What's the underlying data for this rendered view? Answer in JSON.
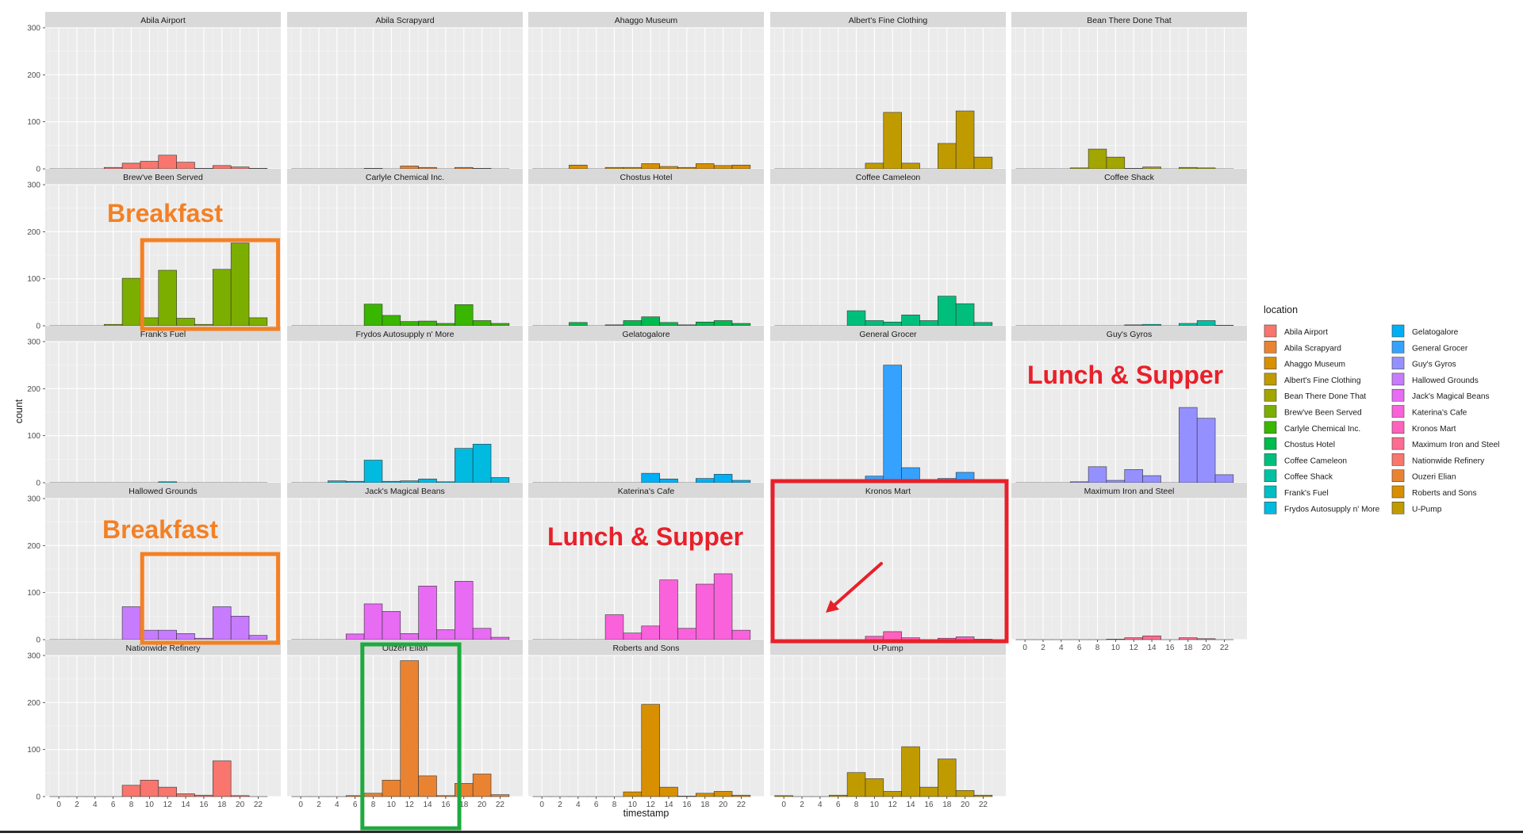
{
  "chart_data": {
    "type": "bar",
    "subtype": "faceted-histogram",
    "xlabel": "timestamp",
    "ylabel": "count",
    "ylim": [
      0,
      300
    ],
    "yticks": [
      0,
      100,
      200,
      300
    ],
    "xlim": [
      -1.5,
      24.5
    ],
    "xticks": [
      0,
      2,
      4,
      6,
      8,
      10,
      12,
      14,
      16,
      18,
      20,
      22
    ],
    "bin_width": 2,
    "bin_centers": [
      0,
      2,
      4,
      6,
      8,
      10,
      12,
      14,
      16,
      18,
      20,
      22
    ],
    "grid": true,
    "legend": {
      "title": "location",
      "placement": "right",
      "columns": 2
    },
    "facets": [
      {
        "name": "Abila Airport",
        "color": "#F8766D",
        "values": [
          0,
          0,
          0,
          3,
          12,
          16,
          29,
          14,
          1,
          7,
          4,
          1
        ]
      },
      {
        "name": "Abila Scrapyard",
        "color": "#EA8331",
        "values": [
          0,
          0,
          0,
          0,
          1,
          0,
          6,
          3,
          0,
          3,
          1,
          0
        ]
      },
      {
        "name": "Ahaggo Museum",
        "color": "#D89000",
        "values": [
          0,
          0,
          8,
          0,
          3,
          3,
          11,
          5,
          3,
          11,
          7,
          8
        ]
      },
      {
        "name": "Albert's Fine Clothing",
        "color": "#C09B00",
        "values": [
          0,
          0,
          0,
          0,
          0,
          12,
          120,
          12,
          0,
          54,
          123,
          25
        ]
      },
      {
        "name": "Bean There Done That",
        "color": "#A3A500",
        "values": [
          0,
          0,
          0,
          2,
          42,
          25,
          1,
          4,
          0,
          3,
          2,
          0
        ]
      },
      {
        "name": "Brew've Been Served",
        "color": "#7CAE00",
        "values": [
          0,
          0,
          0,
          3,
          101,
          17,
          118,
          16,
          3,
          120,
          176,
          17
        ]
      },
      {
        "name": "Carlyle Chemical Inc.",
        "color": "#39B600",
        "values": [
          0,
          0,
          0,
          0,
          46,
          22,
          9,
          10,
          5,
          45,
          11,
          5
        ]
      },
      {
        "name": "Chostus Hotel",
        "color": "#00BB4E",
        "values": [
          0,
          0,
          7,
          0,
          2,
          11,
          19,
          7,
          2,
          8,
          11,
          5
        ]
      },
      {
        "name": "Coffee Cameleon",
        "color": "#00BF7D",
        "values": [
          0,
          0,
          0,
          0,
          32,
          11,
          8,
          23,
          11,
          63,
          47,
          7
        ]
      },
      {
        "name": "Coffee Shack",
        "color": "#00C1A3",
        "values": [
          0,
          0,
          0,
          0,
          0,
          0,
          2,
          3,
          0,
          5,
          11,
          1
        ]
      },
      {
        "name": "Frank's Fuel",
        "color": "#00BFC4",
        "values": [
          0,
          0,
          0,
          0,
          0,
          0,
          2,
          0,
          0,
          0,
          0,
          0
        ]
      },
      {
        "name": "Frydos Autosupply n' More",
        "color": "#00BAE0",
        "values": [
          0,
          0,
          4,
          3,
          48,
          3,
          4,
          8,
          2,
          73,
          82,
          11
        ]
      },
      {
        "name": "Gelatogalore",
        "color": "#00B0F6",
        "values": [
          0,
          0,
          0,
          0,
          0,
          0,
          20,
          8,
          0,
          9,
          18,
          5
        ]
      },
      {
        "name": "General Grocer",
        "color": "#35A2FF",
        "values": [
          0,
          0,
          0,
          0,
          0,
          14,
          250,
          32,
          0,
          9,
          22,
          7
        ]
      },
      {
        "name": "Guy's Gyros",
        "color": "#9590FF",
        "values": [
          0,
          0,
          0,
          2,
          34,
          5,
          28,
          15,
          0,
          160,
          137,
          17
        ]
      },
      {
        "name": "Hallowed Grounds",
        "color": "#C77CFF",
        "values": [
          0,
          0,
          0,
          0,
          70,
          20,
          20,
          13,
          3,
          70,
          50,
          9
        ]
      },
      {
        "name": "Jack's Magical Beans",
        "color": "#E76BF3",
        "values": [
          0,
          0,
          0,
          12,
          76,
          60,
          13,
          114,
          21,
          124,
          24,
          5
        ]
      },
      {
        "name": "Katerina's Cafe",
        "color": "#FA62DB",
        "values": [
          0,
          0,
          0,
          0,
          53,
          14,
          29,
          127,
          24,
          118,
          140,
          20
        ]
      },
      {
        "name": "Kronos Mart",
        "color": "#FF62BC",
        "values": [
          0,
          0,
          0,
          0,
          0,
          7,
          17,
          4,
          0,
          3,
          6,
          1
        ]
      },
      {
        "name": "Maximum Iron and Steel",
        "color": "#FF6C91",
        "values": [
          0,
          0,
          0,
          0,
          0,
          1,
          4,
          8,
          0,
          4,
          2,
          0
        ]
      },
      {
        "name": "Nationwide Refinery",
        "color": "#F8766D",
        "values": [
          0,
          0,
          0,
          0,
          24,
          35,
          20,
          6,
          3,
          76,
          2,
          0
        ]
      },
      {
        "name": "Ouzeri Elian",
        "color": "#EA8331",
        "values": [
          0,
          0,
          0,
          2,
          7,
          35,
          289,
          44,
          2,
          28,
          48,
          4
        ]
      },
      {
        "name": "Roberts and Sons",
        "color": "#D89000",
        "values": [
          0,
          0,
          0,
          0,
          0,
          10,
          196,
          20,
          1,
          7,
          11,
          3
        ]
      },
      {
        "name": "U-Pump",
        "color": "#C09B00",
        "values": [
          2,
          0,
          0,
          3,
          51,
          38,
          11,
          106,
          20,
          80,
          13,
          3
        ]
      }
    ],
    "annotations": [
      {
        "text": "Breakfast",
        "facet": "Brew've Been Served",
        "color": "#F48024",
        "box_color": "#F48024",
        "box_x_range": [
          9.2,
          24.2
        ]
      },
      {
        "text": "Breakfast",
        "facet": "Hallowed Grounds",
        "color": "#F48024",
        "box_color": "#F48024",
        "box_x_range": [
          9.2,
          24.2
        ]
      },
      {
        "text": "Lunch & Supper",
        "facet": "Katerina's Cafe",
        "color": "#E8202A"
      },
      {
        "text": "Lunch & Supper",
        "facet": "Guy's Gyros",
        "color": "#E8202A"
      },
      {
        "text": "",
        "facet": "Kronos Mart",
        "color": "#E8202A",
        "box_color": "#E8202A",
        "box_whole_panel": true,
        "arrow": true
      },
      {
        "text": "",
        "facet": "Ouzeri Elian",
        "color": "#1DAA3E",
        "box_color": "#1DAA3E",
        "box_x_range": [
          6.8,
          17.5
        ]
      }
    ]
  }
}
